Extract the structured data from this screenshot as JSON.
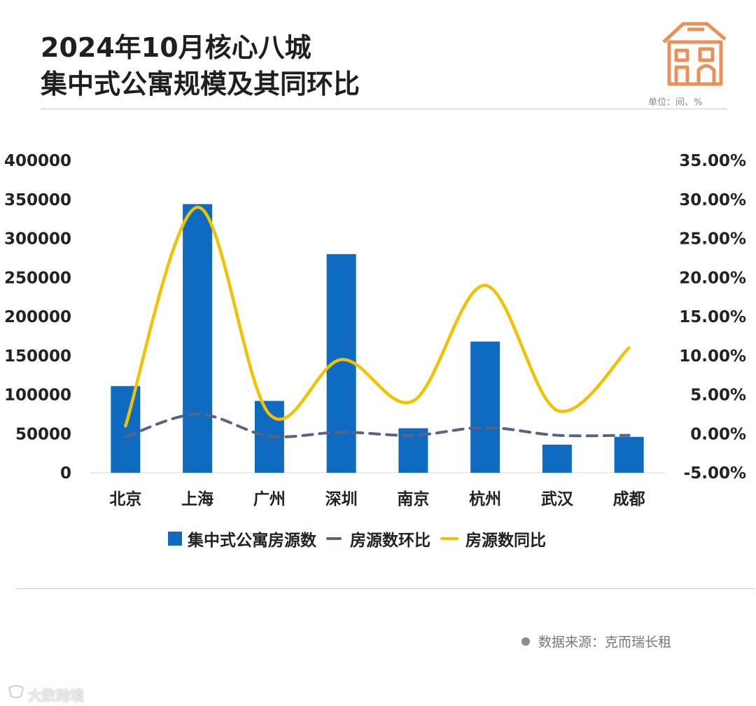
{
  "header": {
    "title_line1": "2024年10月核心八城",
    "title_line2": "集中式公寓规模及其同环比",
    "unit": "单位：间、%"
  },
  "legend": {
    "bar": "集中式公寓房源数",
    "mom": "房源数环比",
    "yoy": "房源数同比"
  },
  "footer": {
    "source": "数据来源：克而瑞长租",
    "brand": "大数跨境"
  },
  "colors": {
    "bar": "#0f6bbf",
    "mom": "#5a6480",
    "yoy": "#f2c200",
    "house_icon": "#e8925a"
  },
  "chart_data": {
    "type": "bar",
    "categories": [
      "北京",
      "上海",
      "广州",
      "深圳",
      "南京",
      "杭州",
      "武汉",
      "成都"
    ],
    "series": [
      {
        "name": "集中式公寓房源数",
        "type": "bar",
        "axis": "left",
        "values": [
          111000,
          344000,
          92000,
          280000,
          57000,
          168000,
          36000,
          46000
        ]
      },
      {
        "name": "房源数环比",
        "type": "line",
        "style": "dashed",
        "axis": "right",
        "values": [
          -0.4,
          2.5,
          -0.3,
          0.2,
          -0.2,
          0.8,
          -0.2,
          -0.2
        ]
      },
      {
        "name": "房源数同比",
        "type": "line",
        "style": "smooth",
        "axis": "right",
        "values": [
          1.0,
          29.0,
          2.5,
          9.5,
          4.2,
          19.0,
          3.0,
          11.0
        ]
      }
    ],
    "y_left": {
      "min": 0,
      "max": 400000,
      "ticks": [
        "0",
        "50000",
        "100000",
        "150000",
        "200000",
        "250000",
        "300000",
        "350000",
        "400000"
      ]
    },
    "y_right": {
      "min": -5,
      "max": 35,
      "ticks": [
        "-5.00%",
        "0.00%",
        "5.00%",
        "10.00%",
        "15.00%",
        "20.00%",
        "25.00%",
        "30.00%",
        "35.00%"
      ]
    },
    "grid": false
  }
}
